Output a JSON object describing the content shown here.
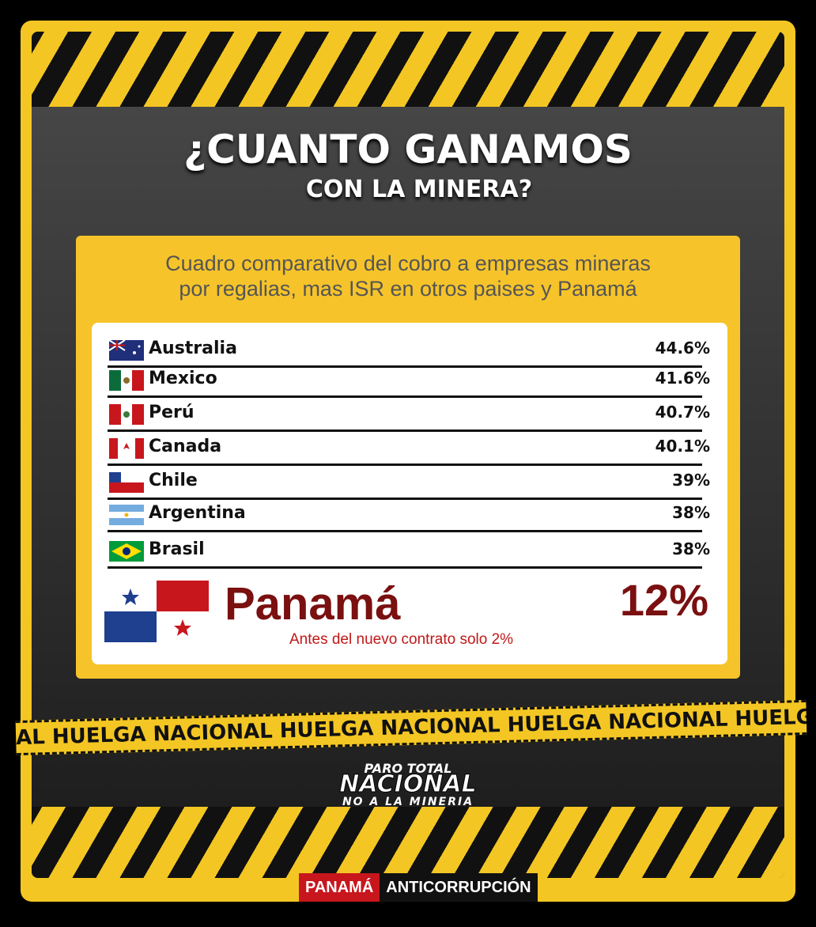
{
  "header": {
    "title": "¿CUANTO GANAMOS",
    "subtitle": "CON LA MINERA?"
  },
  "card": {
    "heading": [
      "Cuadro comparativo del cobro a empresas mineras",
      "por regalias, mas ISR en otros paises y Panamá"
    ],
    "rows": [
      {
        "country": "Australia",
        "value": "44.6%"
      },
      {
        "country": "Mexico",
        "value": "41.6%"
      },
      {
        "country": "Perú",
        "value": "40.7%"
      },
      {
        "country": "Canada",
        "value": "40.1%"
      },
      {
        "country": "Chile",
        "value": "39%"
      },
      {
        "country": "Argentina",
        "value": "38%"
      },
      {
        "country": "Brasil",
        "value": "38%"
      }
    ],
    "highlight": {
      "country": "Panamá",
      "value": "12%",
      "note": "Antes del nuevo contrato solo 2%"
    }
  },
  "tape": "AL HUELGA NACIONAL HUELGA NACIONAL HUELGA NACIONAL HUELGA NAC",
  "logo": [
    "PARO TOTAL",
    "NACIONAL",
    "NO A LA MINERIA"
  ],
  "footer": {
    "left": "PANAMÁ",
    "right": "ANTICORRUPCIÓN"
  }
}
